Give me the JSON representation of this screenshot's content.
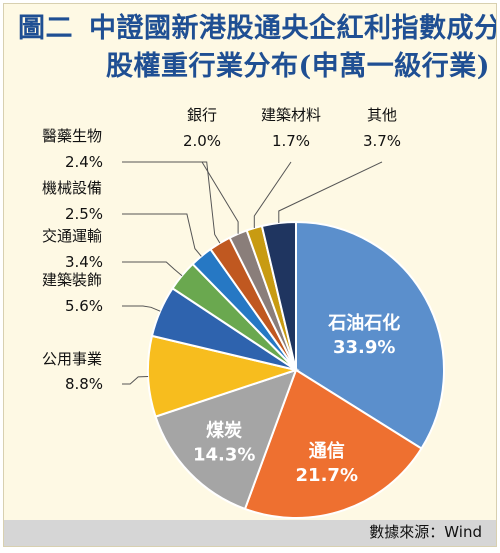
{
  "title": {
    "line1_lead": "圖二",
    "line1": "中證國新港股通央企紅利指數成分",
    "line2": "股權重行業分布(申萬一級行業)"
  },
  "source": "數據來源：Wind",
  "chart_data": {
    "type": "pie",
    "unit": "%",
    "slices": [
      {
        "label": "石油石化",
        "value": 33.9,
        "color": "#5b8fcc"
      },
      {
        "label": "通信",
        "value": 21.7,
        "color": "#ee7030"
      },
      {
        "label": "煤炭",
        "value": 14.3,
        "color": "#a5a5a5"
      },
      {
        "label": "公用事業",
        "value": 8.8,
        "color": "#f7bd1e"
      },
      {
        "label": "建築裝飾",
        "value": 5.6,
        "color": "#2e63ae"
      },
      {
        "label": "交通運輸",
        "value": 3.4,
        "color": "#6aa84f"
      },
      {
        "label": "機械設備",
        "value": 2.5,
        "color": "#2678c4"
      },
      {
        "label": "醫藥生物",
        "value": 2.4,
        "color": "#c05820"
      },
      {
        "label": "銀行",
        "value": 2.0,
        "color": "#8a7e7a"
      },
      {
        "label": "建築材料",
        "value": 1.7,
        "color": "#c89b12"
      },
      {
        "label": "其他",
        "value": 3.7,
        "color": "#1f3560"
      }
    ]
  }
}
